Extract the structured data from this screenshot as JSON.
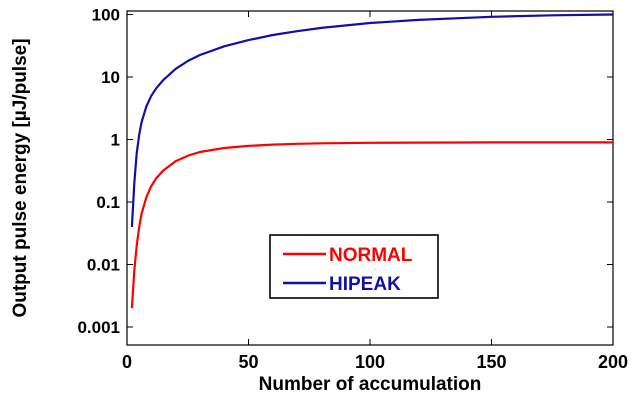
{
  "chart_data": {
    "type": "line",
    "xlabel": "Number of accumulation",
    "ylabel": "Output pulse energy [µJ/pulse]",
    "xlim": [
      0,
      200
    ],
    "ylim": [
      0.001,
      200
    ],
    "yscale": "log",
    "xticks": [
      0,
      50,
      100,
      150,
      200
    ],
    "xtick_labels": [
      "0",
      "50",
      "100",
      "150",
      "200"
    ],
    "yticks": [
      0.001,
      0.01,
      0.1,
      1,
      10,
      100
    ],
    "ytick_labels": [
      "0.001",
      "0.01",
      "0.1",
      "1",
      "10",
      "100"
    ],
    "grid": false,
    "legend_position": "center",
    "series": [
      {
        "name": "NORMAL",
        "color": "#ff0000",
        "x": [
          2,
          3,
          4,
          5,
          6,
          8,
          10,
          12,
          15,
          20,
          25,
          30,
          40,
          50,
          60,
          70,
          80,
          100,
          120,
          150,
          175,
          200
        ],
        "y": [
          0.002,
          0.008,
          0.02,
          0.04,
          0.065,
          0.12,
          0.18,
          0.24,
          0.32,
          0.45,
          0.55,
          0.63,
          0.73,
          0.79,
          0.83,
          0.855,
          0.87,
          0.885,
          0.893,
          0.898,
          0.9,
          0.9
        ]
      },
      {
        "name": "HIPEAK",
        "color": "#1010a8",
        "x": [
          2,
          3,
          4,
          5,
          6,
          8,
          10,
          12,
          15,
          20,
          25,
          30,
          40,
          50,
          60,
          70,
          80,
          100,
          120,
          150,
          175,
          200
        ],
        "y": [
          0.04,
          0.2,
          0.6,
          1.2,
          1.9,
          3.4,
          5.0,
          6.6,
          9.0,
          13.5,
          18,
          22.5,
          31,
          39,
          47,
          54,
          61,
          73,
          82,
          92,
          97,
          100
        ]
      }
    ]
  }
}
